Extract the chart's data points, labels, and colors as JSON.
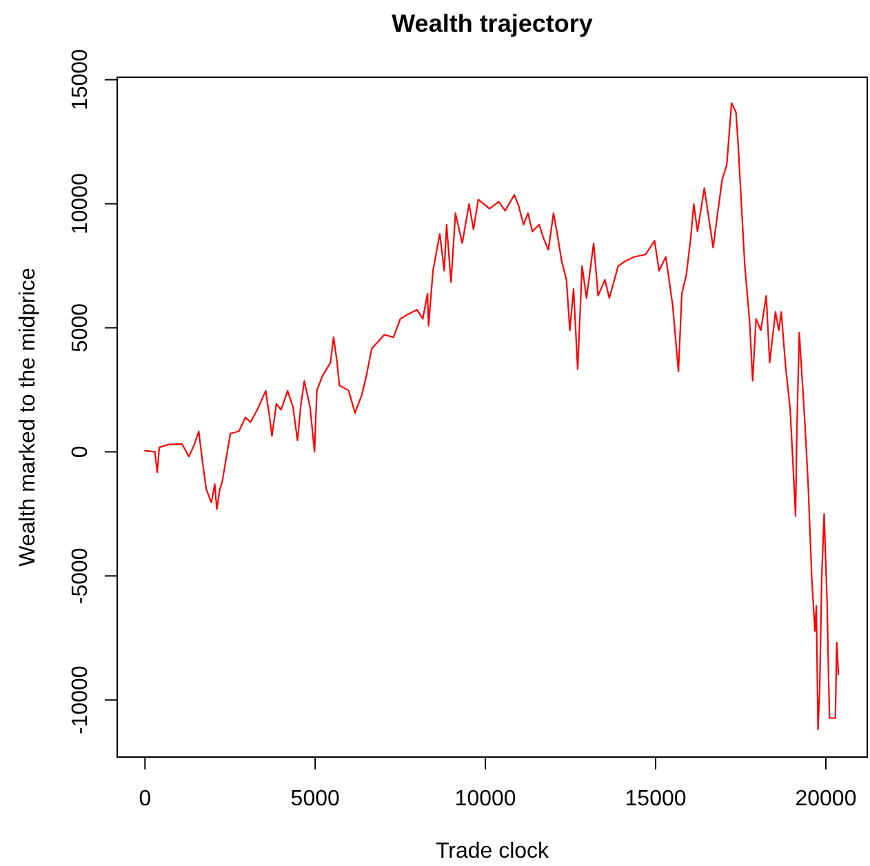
{
  "chart_data": {
    "type": "line",
    "title": "Wealth trajectory",
    "xlabel": "Trade clock",
    "ylabel": "Wealth marked to the midprice",
    "color": "#ff0000",
    "x": [
      0,
      290,
      360,
      420,
      700,
      1090,
      1290,
      1450,
      1580,
      1680,
      1800,
      1950,
      2050,
      2110,
      2200,
      2270,
      2380,
      2510,
      2760,
      2950,
      3100,
      3300,
      3546,
      3650,
      3730,
      3860,
      4000,
      4190,
      4350,
      4480,
      4580,
      4680,
      4850,
      4980,
      5050,
      5210,
      5450,
      5540,
      5640,
      5710,
      5980,
      6170,
      6370,
      6500,
      6660,
      7030,
      7300,
      7500,
      7730,
      7990,
      8160,
      8300,
      8330,
      8460,
      8660,
      8790,
      8860,
      8990,
      9120,
      9320,
      9520,
      9650,
      9790,
      10120,
      10390,
      10580,
      10850,
      10980,
      11120,
      11250,
      11380,
      11580,
      11710,
      11850,
      12000,
      12110,
      12240,
      12380,
      12480,
      12590,
      12710,
      12840,
      12970,
      13180,
      13310,
      13510,
      13640,
      13900,
      14100,
      14370,
      14700,
      14970,
      15100,
      15300,
      15500,
      15670,
      15770,
      15900,
      16030,
      16120,
      16230,
      16430,
      16560,
      16690,
      16830,
      16960,
      17090,
      17230,
      17360,
      17420,
      17560,
      17620,
      17760,
      17850,
      17950,
      18090,
      18250,
      18350,
      18520,
      18620,
      18690,
      18820,
      18950,
      19020,
      19080,
      19110,
      19150,
      19220,
      19350,
      19390,
      19480,
      19590,
      19680,
      19720,
      19770,
      19820,
      19880,
      19950,
      20040,
      20080,
      20110,
      20280,
      20320,
      20370
    ],
    "values": [
      50,
      0,
      -830,
      180,
      300,
      310,
      -190,
      300,
      830,
      -300,
      -1500,
      -2040,
      -1300,
      -2310,
      -1500,
      -1200,
      -300,
      740,
      830,
      1390,
      1200,
      1700,
      2460,
      1500,
      640,
      1940,
      1700,
      2460,
      1800,
      460,
      1900,
      2860,
      1800,
      0,
      2480,
      3050,
      3600,
      4620,
      3650,
      2680,
      2480,
      1570,
      2300,
      3050,
      4160,
      4720,
      4620,
      5360,
      5550,
      5730,
      5360,
      6380,
      5080,
      7300,
      8790,
      7300,
      9160,
      6840,
      9620,
      8410,
      9990,
      8970,
      10170,
      9800,
      10080,
      9720,
      10360,
      9900,
      9160,
      9620,
      8880,
      9160,
      8600,
      8140,
      9620,
      8790,
      7680,
      6940,
      4900,
      6570,
      3330,
      7490,
      6200,
      8410,
      6290,
      6940,
      6200,
      7490,
      7680,
      7860,
      7950,
      8510,
      7300,
      7860,
      5920,
      3240,
      6380,
      7120,
      8600,
      9990,
      8880,
      10630,
      9440,
      8230,
      9710,
      11010,
      11560,
      14060,
      13690,
      12490,
      8970,
      7490,
      5270,
      2860,
      5360,
      4900,
      6290,
      3600,
      5640,
      4900,
      5640,
      3420,
      1750,
      -90,
      -1710,
      -2590,
      1000,
      4810,
      1940,
      1020,
      -1300,
      -5180,
      -7220,
      -6200,
      -11190,
      -9530,
      -5000,
      -2500,
      -6200,
      -9160,
      -10730,
      -10730,
      -7680,
      -8970
    ],
    "xlim": [
      -816,
      21216
    ],
    "ylim": [
      -12300,
      15100
    ],
    "xticks": [
      0,
      5000,
      10000,
      15000,
      20000
    ],
    "yticks": [
      -10000,
      -5000,
      0,
      5000,
      10000,
      15000
    ]
  }
}
